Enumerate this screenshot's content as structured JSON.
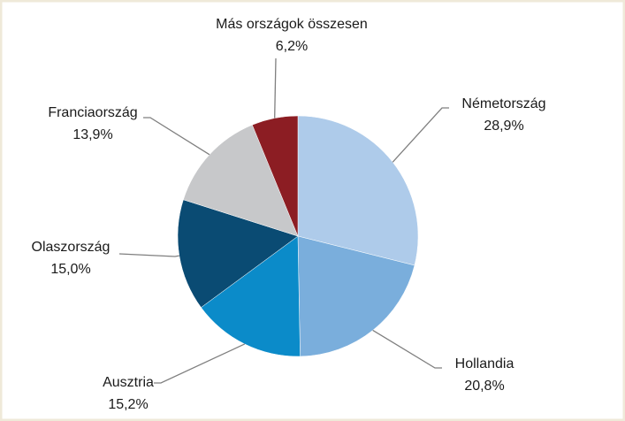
{
  "chart_data": {
    "type": "pie",
    "categories": [
      "Németország",
      "Hollandia",
      "Ausztria",
      "Olaszország",
      "Franciaország",
      "Más országok összesen"
    ],
    "values": [
      28.9,
      20.8,
      15.2,
      15.0,
      13.9,
      6.2
    ],
    "value_labels": [
      "28,9%",
      "20,8%",
      "15,2%",
      "15,0%",
      "13,9%",
      "6,2%"
    ],
    "colors": [
      "#aecbea",
      "#7aaedc",
      "#0b8bc9",
      "#0a4b73",
      "#c7c8ca",
      "#8c1d23"
    ]
  }
}
